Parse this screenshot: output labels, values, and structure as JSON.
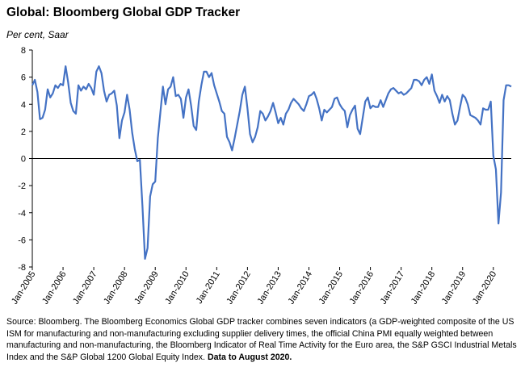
{
  "chart_data": {
    "type": "line",
    "title": "Global: Bloomberg Global GDP Tracker",
    "y_label": "Per cent, Saar",
    "source": "Source: Bloomberg. The Bloomberg Economics Global GDP tracker combines seven indicators (a GDP-weighted composite of the US ISM for manufacturing and non-manufacturing excluding supplier delivery times, the official China PMI equally weighted between manufacturing and non-manufacturing, the Bloomberg Indicator of Real Time Activity for the Euro area, the S&P GSCI Industrial Metals Index and the S&P Global 1200 Global Equity Index.",
    "source_note": "Data to August 2020.",
    "categories": [
      "Jan-2005",
      null,
      null,
      null,
      null,
      null,
      null,
      null,
      null,
      null,
      null,
      null,
      "Jan-2006",
      null,
      null,
      null,
      null,
      null,
      null,
      null,
      null,
      null,
      null,
      null,
      "Jan-2007",
      null,
      null,
      null,
      null,
      null,
      null,
      null,
      null,
      null,
      null,
      null,
      "Jan-2008",
      null,
      null,
      null,
      null,
      null,
      null,
      null,
      null,
      null,
      null,
      null,
      "Jan-2009",
      null,
      null,
      null,
      null,
      null,
      null,
      null,
      null,
      null,
      null,
      null,
      "Jan-2010",
      null,
      null,
      null,
      null,
      null,
      null,
      null,
      null,
      null,
      null,
      null,
      "Jan-2011",
      null,
      null,
      null,
      null,
      null,
      null,
      null,
      null,
      null,
      null,
      null,
      "Jan-2012",
      null,
      null,
      null,
      null,
      null,
      null,
      null,
      null,
      null,
      null,
      null,
      "Jan-2013",
      null,
      null,
      null,
      null,
      null,
      null,
      null,
      null,
      null,
      null,
      null,
      "Jan-2014",
      null,
      null,
      null,
      null,
      null,
      null,
      null,
      null,
      null,
      null,
      null,
      "Jan-2015",
      null,
      null,
      null,
      null,
      null,
      null,
      null,
      null,
      null,
      null,
      null,
      "Jan-2016",
      null,
      null,
      null,
      null,
      null,
      null,
      null,
      null,
      null,
      null,
      null,
      "Jan-2017",
      null,
      null,
      null,
      null,
      null,
      null,
      null,
      null,
      null,
      null,
      null,
      "Jan-2018",
      null,
      null,
      null,
      null,
      null,
      null,
      null,
      null,
      null,
      null,
      null,
      "Jan-2019",
      null,
      null,
      null,
      null,
      null,
      null,
      null,
      null,
      null,
      null,
      null,
      "Jan-2020",
      null,
      null,
      null,
      null,
      null,
      null,
      null
    ],
    "series": [
      {
        "name": "Bloomberg Global GDP Tracker",
        "color": "#4472c4",
        "values": [
          5.4,
          5.8,
          4.9,
          2.9,
          3.0,
          3.6,
          5.1,
          4.5,
          4.8,
          5.4,
          5.2,
          5.5,
          5.4,
          6.8,
          5.6,
          4.1,
          3.5,
          3.3,
          5.4,
          5.0,
          5.3,
          5.1,
          5.5,
          5.2,
          4.7,
          6.4,
          6.8,
          6.3,
          5.0,
          4.2,
          4.7,
          4.8,
          5.0,
          3.9,
          1.5,
          2.8,
          3.4,
          4.7,
          3.6,
          1.9,
          0.7,
          -0.2,
          -0.1,
          -3.5,
          -7.4,
          -6.6,
          -2.8,
          -1.9,
          -1.7,
          1.5,
          3.4,
          5.3,
          4.0,
          5.1,
          5.3,
          6.0,
          4.6,
          4.7,
          4.4,
          3.0,
          4.5,
          5.1,
          3.9,
          2.4,
          2.1,
          4.2,
          5.4,
          6.4,
          6.4,
          6.0,
          6.3,
          5.4,
          4.8,
          4.2,
          3.5,
          3.3,
          1.6,
          1.2,
          0.6,
          1.5,
          2.5,
          3.5,
          4.7,
          5.3,
          3.7,
          1.8,
          1.2,
          1.6,
          2.3,
          3.5,
          3.3,
          2.8,
          3.1,
          3.5,
          4.1,
          3.4,
          2.6,
          3.0,
          2.5,
          3.3,
          3.6,
          4.1,
          4.4,
          4.2,
          4.0,
          3.7,
          3.5,
          4.0,
          4.6,
          4.7,
          4.9,
          4.4,
          3.7,
          2.8,
          3.6,
          3.4,
          3.6,
          3.8,
          4.4,
          4.5,
          4.0,
          3.7,
          3.5,
          2.3,
          3.2,
          3.6,
          3.9,
          2.2,
          1.8,
          3.0,
          4.2,
          4.5,
          3.7,
          3.9,
          3.8,
          3.8,
          4.3,
          3.8,
          4.3,
          4.8,
          5.1,
          5.2,
          5.0,
          4.8,
          4.9,
          4.7,
          4.8,
          5.0,
          5.2,
          5.8,
          5.8,
          5.7,
          5.4,
          5.8,
          6.0,
          5.5,
          6.2,
          5.0,
          4.6,
          4.1,
          4.7,
          4.2,
          4.6,
          4.3,
          3.3,
          2.5,
          2.8,
          3.8,
          4.7,
          4.5,
          4.0,
          3.2,
          3.1,
          3.0,
          2.8,
          2.5,
          3.7,
          3.6,
          3.6,
          4.2,
          0.2,
          -0.8,
          -4.8,
          -2.5,
          4.3,
          5.4,
          5.4,
          5.3
        ]
      }
    ],
    "ylim": [
      -8,
      8
    ],
    "yticks": [
      -8,
      -6,
      -4,
      -2,
      0,
      2,
      4,
      6,
      8
    ]
  }
}
